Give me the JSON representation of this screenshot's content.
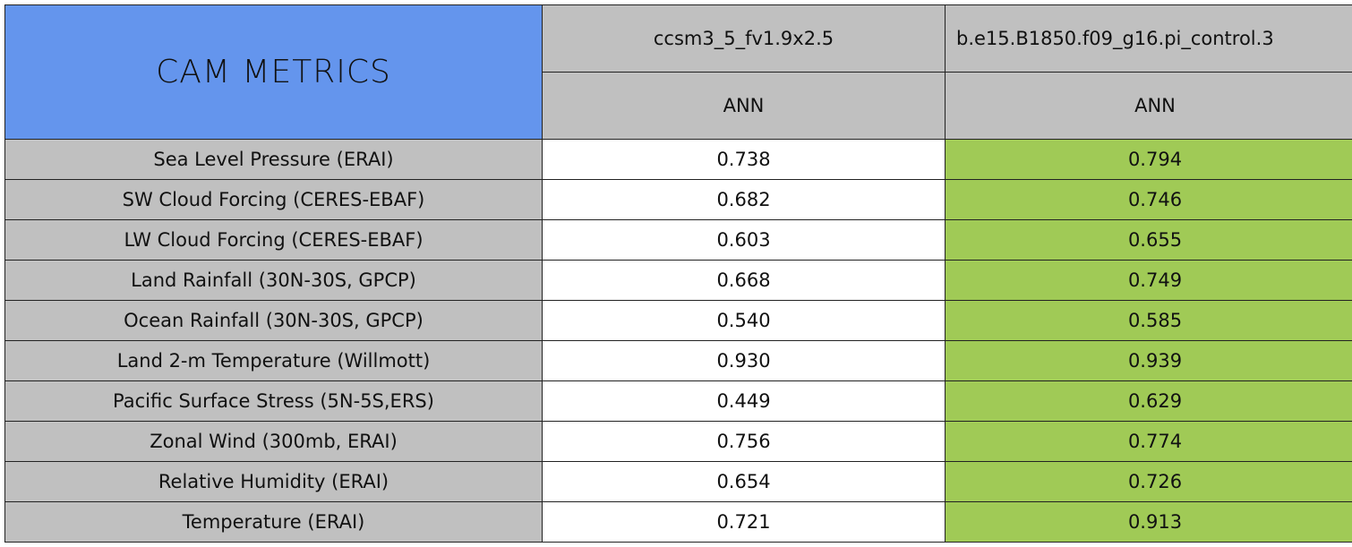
{
  "header": {
    "title": "CAM METRICS"
  },
  "table": {
    "columns": [
      {
        "name": "ccsm3_5_fv1.9x2.5",
        "period": "ANN"
      },
      {
        "name": "b.e15.B1850.f09_g16.pi_control.3",
        "period": "ANN"
      }
    ],
    "rows": [
      [
        "Sea Level Pressure (ERAI)",
        "0.738",
        "0.794"
      ],
      [
        "SW Cloud Forcing (CERES-EBAF)",
        "0.682",
        "0.746"
      ],
      [
        "LW Cloud Forcing (CERES-EBAF)",
        "0.603",
        "0.655"
      ],
      [
        "Land Rainfall (30N-30S, GPCP)",
        "0.668",
        "0.749"
      ],
      [
        "Ocean Rainfall (30N-30S, GPCP)",
        "0.540",
        "0.585"
      ],
      [
        "Land 2-m Temperature (Willmott)",
        "0.930",
        "0.939"
      ],
      [
        "Pacific Surface Stress (5N-5S,ERS)",
        "0.449",
        "0.629"
      ],
      [
        "Zonal Wind (300mb, ERAI)",
        "0.756",
        "0.774"
      ],
      [
        "Relative Humidity (ERAI)",
        "0.654",
        "0.726"
      ],
      [
        "Temperature (ERAI)",
        "0.721",
        "0.913"
      ]
    ]
  }
}
